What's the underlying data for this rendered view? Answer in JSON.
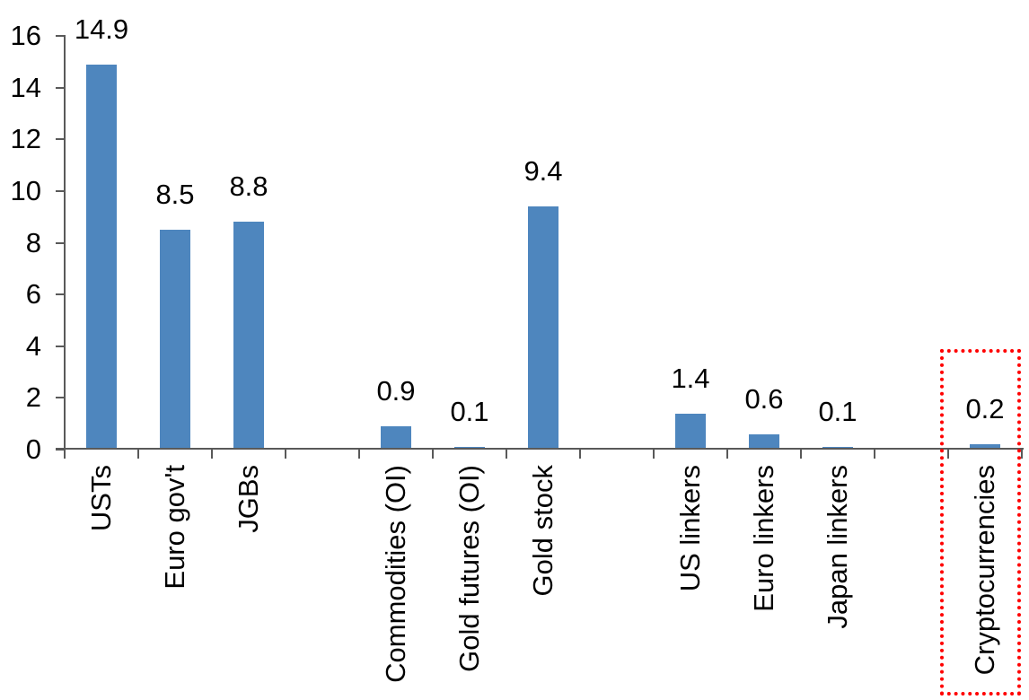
{
  "chart_data": {
    "type": "bar",
    "title": "",
    "categories": [
      "USTs",
      "Euro gov't",
      "JGBs",
      "Commodities (OI)",
      "Gold futures (OI)",
      "Gold stock",
      "US linkers",
      "Euro linkers",
      "Japan linkers",
      "Cryptocurrencies"
    ],
    "values": [
      14.9,
      8.5,
      8.8,
      0.9,
      0.1,
      9.4,
      1.4,
      0.6,
      0.1,
      0.2
    ],
    "data_labels": [
      "14.9",
      "8.5",
      "8.8",
      "0.9",
      "0.1",
      "9.4",
      "1.4",
      "0.6",
      "0.1",
      "0.2"
    ],
    "slots": [
      0,
      1,
      2,
      4,
      5,
      6,
      8,
      9,
      10,
      12
    ],
    "num_slots": 13,
    "xlabel": "",
    "ylabel": "",
    "ylim": [
      0,
      16
    ],
    "yticks": [
      0,
      2,
      4,
      6,
      8,
      10,
      12,
      14,
      16
    ],
    "grid": false,
    "legend": false,
    "bar_color": "#4E86BE",
    "axis_color": "#595959",
    "text_color": "#000000",
    "highlight": {
      "target": "Cryptocurrencies",
      "border_color": "#FF0000",
      "border_style": "dotted"
    }
  }
}
